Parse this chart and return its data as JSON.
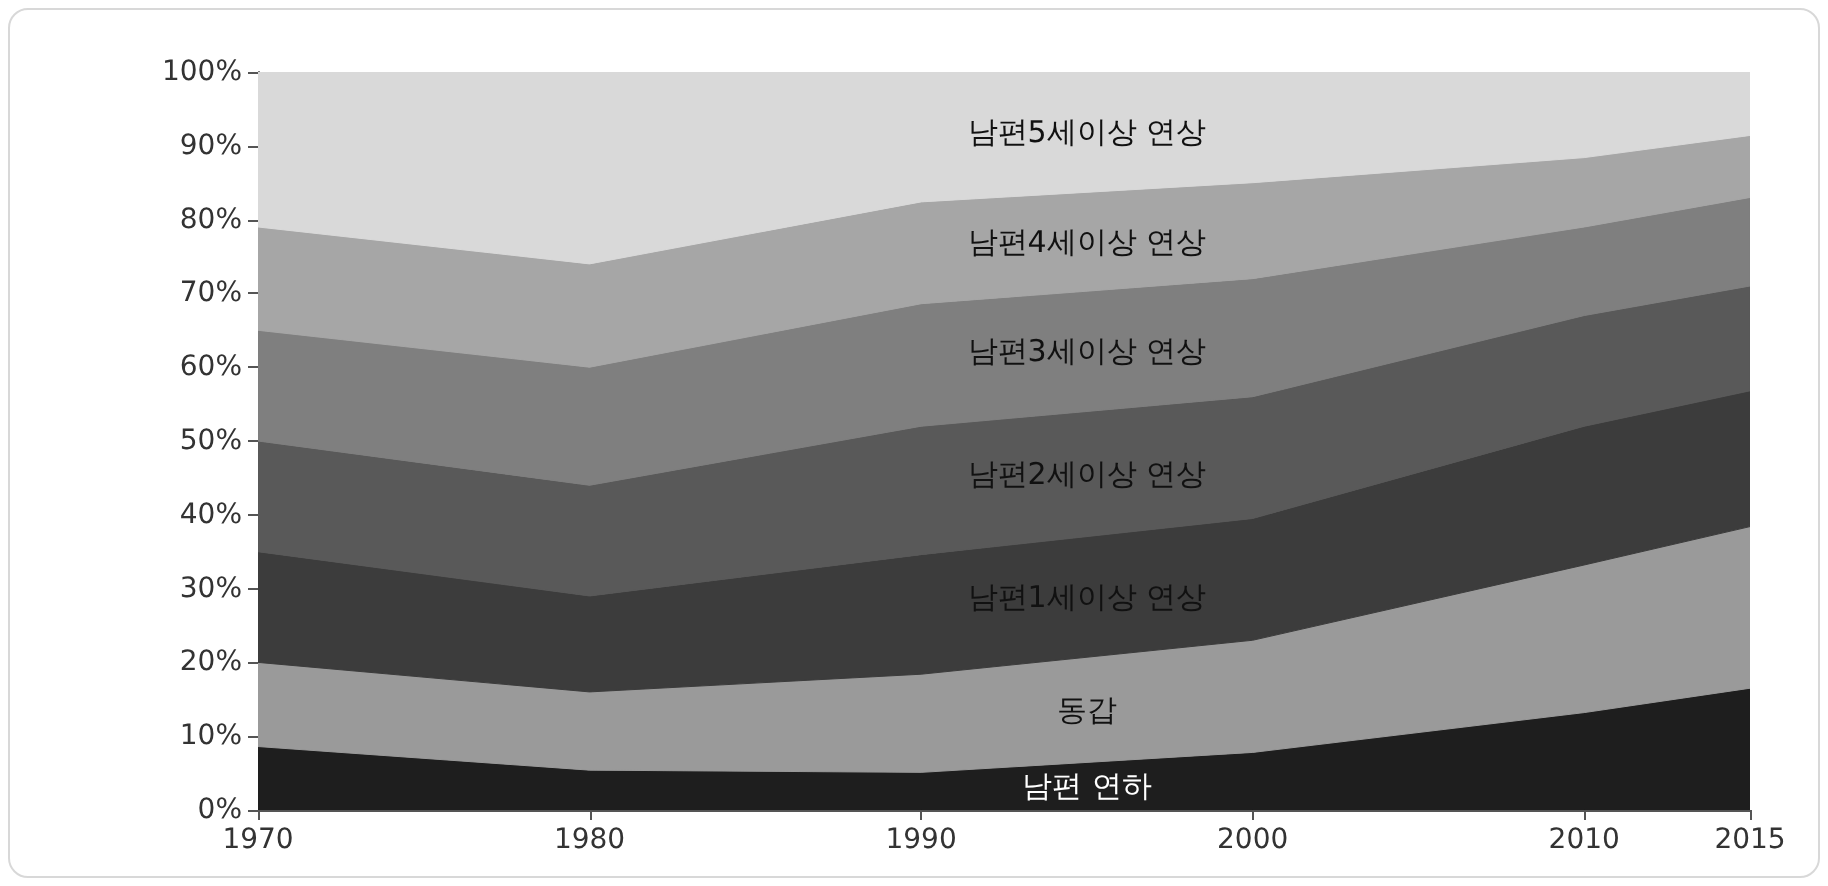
{
  "chart_data": {
    "type": "area",
    "stacked": true,
    "legend": false,
    "grid": false,
    "x": [
      1970,
      1980,
      1990,
      2000,
      2010,
      2015
    ],
    "xlim": [
      1970,
      2015
    ],
    "xticks": [
      1970,
      1980,
      1990,
      2000,
      2010,
      2015
    ],
    "ylim": [
      0,
      100
    ],
    "yticks": [
      {
        "value": 0,
        "label": "0%"
      },
      {
        "value": 10,
        "label": "10%"
      },
      {
        "value": 20,
        "label": "20%"
      },
      {
        "value": 30,
        "label": "30%"
      },
      {
        "value": 40,
        "label": "40%"
      },
      {
        "value": 50,
        "label": "50%"
      },
      {
        "value": 60,
        "label": "60%"
      },
      {
        "value": 70,
        "label": "70%"
      },
      {
        "value": 80,
        "label": "80%"
      },
      {
        "value": 90,
        "label": "90%"
      },
      {
        "value": 100,
        "label": "100%"
      }
    ],
    "series": [
      {
        "name": "남편 연하",
        "color": "#1e1e1e",
        "values": [
          8.6,
          5.4,
          5.1,
          7.8,
          13.2,
          16.5
        ]
      },
      {
        "name": "동갑",
        "color": "#9a9a9a",
        "values": [
          11.4,
          10.6,
          13.3,
          15.2,
          20,
          21.9
        ]
      },
      {
        "name": "남편1세이상 연상",
        "color": "#3c3c3c",
        "values": [
          15,
          13,
          16.2,
          16.5,
          18.8,
          18.4
        ]
      },
      {
        "name": "남편2세이상 연상",
        "color": "#595959",
        "values": [
          15,
          15,
          17.4,
          16.5,
          15,
          14.2
        ]
      },
      {
        "name": "남편3세이상 연상",
        "color": "#7f7f7f",
        "values": [
          15,
          16,
          16.6,
          16,
          12,
          12
        ]
      },
      {
        "name": "남편4세이상 연상",
        "color": "#a6a6a6",
        "values": [
          14,
          14,
          13.8,
          13,
          9.4,
          8.4
        ]
      },
      {
        "name": "남편5세이상 연상",
        "color": "#d9d9d9",
        "values": [
          21,
          26,
          17.6,
          15,
          11.6,
          8.6
        ]
      }
    ]
  }
}
